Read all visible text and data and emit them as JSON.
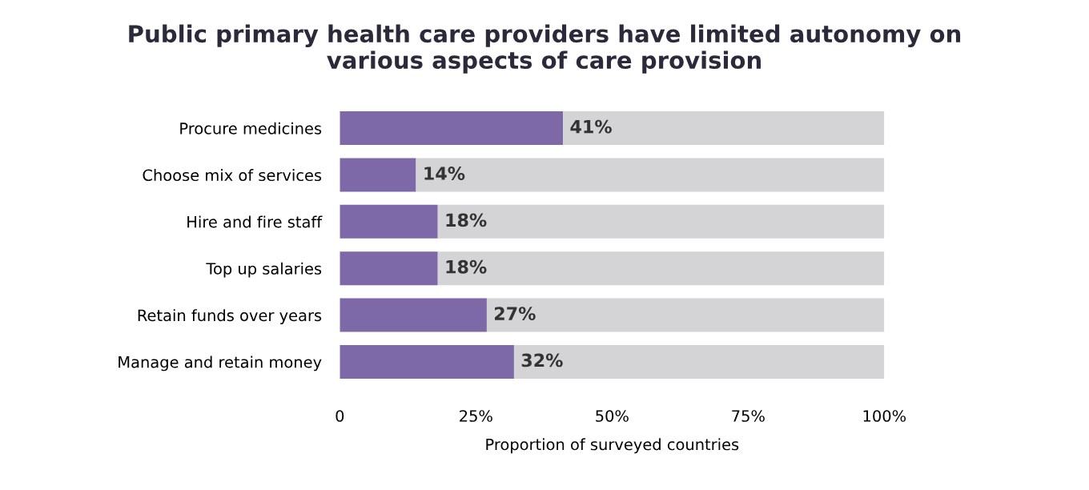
{
  "chart_data": {
    "type": "bar",
    "orientation": "horizontal",
    "stacked": true,
    "title": "Public primary health care providers have limited autonomy on\nvarious aspects of care provision",
    "xlabel": "Proportion of surveyed countries",
    "categories": [
      "Procure medicines",
      "Choose mix of services",
      "Hire and fire staff",
      "Top up salaries",
      "Retain funds over years",
      "Manage and retain money"
    ],
    "series": [
      {
        "color": "#7d68a8",
        "values": [
          41,
          14,
          18,
          18,
          27,
          32
        ],
        "value_labels": [
          "41%",
          "14%",
          "18%",
          "18%",
          "27%",
          "32%"
        ]
      },
      {
        "color": "#d4d4d6",
        "values": [
          59,
          86,
          82,
          82,
          73,
          68
        ]
      }
    ],
    "xlim": [
      0,
      100
    ],
    "xticks": [
      0,
      {
        "value": 25,
        "label": "25%"
      },
      {
        "value": 50,
        "label": "50%"
      },
      {
        "value": 75,
        "label": "75%"
      },
      {
        "value": 100,
        "label": "100%"
      }
    ],
    "grid": false,
    "legend": false
  }
}
